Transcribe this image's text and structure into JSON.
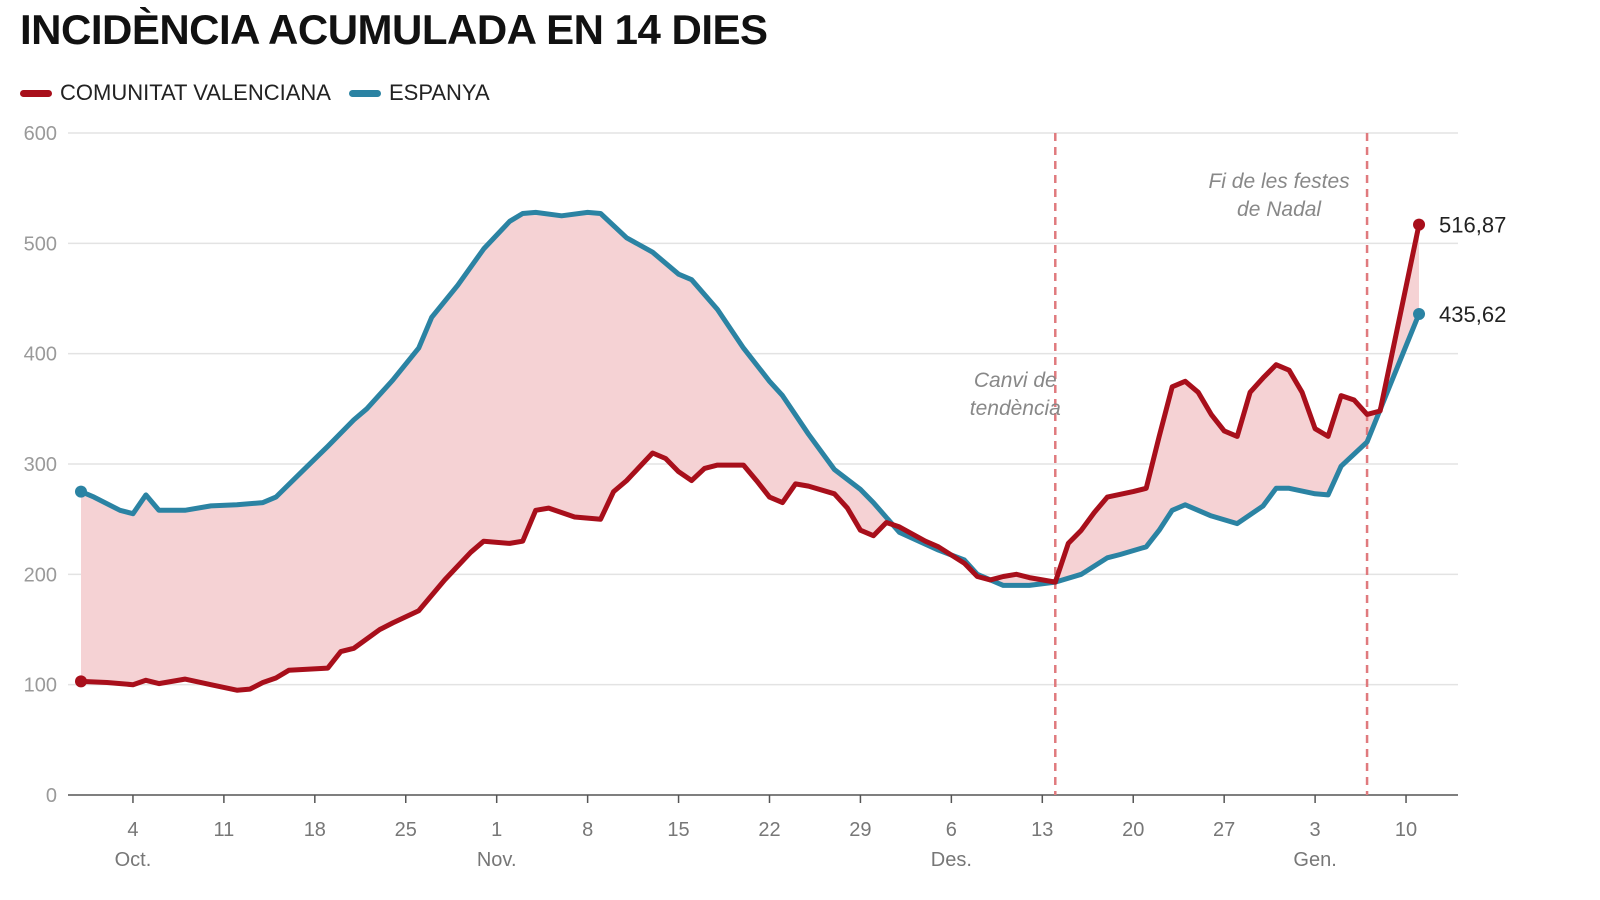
{
  "title": "INCIDÈNCIA ACUMULADA EN 14 DIES",
  "colors": {
    "cv": "#a80f1b",
    "es": "#2b83a3",
    "fill": "#f5d2d4",
    "grid": "#e3e3e3",
    "axis": "#999999",
    "marker": "#e07a7e"
  },
  "legend": [
    {
      "label": "COMUNITAT VALENCIANA",
      "color": "#a80f1b"
    },
    {
      "label": "ESPANYA",
      "color": "#2b83a3"
    }
  ],
  "chart_data": {
    "type": "line",
    "title": "INCIDÈNCIA ACUMULADA EN 14 DIES",
    "xlabel": "",
    "ylabel": "",
    "ylim": [
      0,
      600
    ],
    "yticks": [
      0,
      100,
      200,
      300,
      400,
      500,
      600
    ],
    "xlim": [
      "2020-09-29",
      "2021-01-14"
    ],
    "grid": true,
    "legend_position": "top-left",
    "xticks": [
      {
        "date": "2020-10-04",
        "label": "4",
        "month": "Oct."
      },
      {
        "date": "2020-10-11",
        "label": "11",
        "month": ""
      },
      {
        "date": "2020-10-18",
        "label": "18",
        "month": ""
      },
      {
        "date": "2020-10-25",
        "label": "25",
        "month": ""
      },
      {
        "date": "2020-11-01",
        "label": "1",
        "month": "Nov."
      },
      {
        "date": "2020-11-08",
        "label": "8",
        "month": ""
      },
      {
        "date": "2020-11-15",
        "label": "15",
        "month": ""
      },
      {
        "date": "2020-11-22",
        "label": "22",
        "month": ""
      },
      {
        "date": "2020-11-29",
        "label": "29",
        "month": ""
      },
      {
        "date": "2020-12-06",
        "label": "6",
        "month": "Des."
      },
      {
        "date": "2020-12-13",
        "label": "13",
        "month": ""
      },
      {
        "date": "2020-12-20",
        "label": "20",
        "month": ""
      },
      {
        "date": "2020-12-27",
        "label": "27",
        "month": ""
      },
      {
        "date": "2021-01-03",
        "label": "3",
        "month": "Gen."
      },
      {
        "date": "2021-01-10",
        "label": "10",
        "month": ""
      }
    ],
    "series": [
      {
        "name": "COMUNITAT VALENCIANA",
        "color": "#a80f1b",
        "end_label": "516,87",
        "points": [
          [
            "2020-09-30",
            103
          ],
          [
            "2020-10-02",
            102
          ],
          [
            "2020-10-04",
            100
          ],
          [
            "2020-10-05",
            104
          ],
          [
            "2020-10-06",
            101
          ],
          [
            "2020-10-08",
            105
          ],
          [
            "2020-10-10",
            100
          ],
          [
            "2020-10-12",
            95
          ],
          [
            "2020-10-13",
            96
          ],
          [
            "2020-10-14",
            102
          ],
          [
            "2020-10-15",
            106
          ],
          [
            "2020-10-16",
            113
          ],
          [
            "2020-10-19",
            115
          ],
          [
            "2020-10-20",
            130
          ],
          [
            "2020-10-21",
            133
          ],
          [
            "2020-10-23",
            150
          ],
          [
            "2020-10-24",
            156
          ],
          [
            "2020-10-26",
            167
          ],
          [
            "2020-10-28",
            195
          ],
          [
            "2020-10-30",
            220
          ],
          [
            "2020-10-31",
            230
          ],
          [
            "2020-11-02",
            228
          ],
          [
            "2020-11-03",
            230
          ],
          [
            "2020-11-04",
            258
          ],
          [
            "2020-11-05",
            260
          ],
          [
            "2020-11-07",
            252
          ],
          [
            "2020-11-09",
            250
          ],
          [
            "2020-11-10",
            275
          ],
          [
            "2020-11-11",
            285
          ],
          [
            "2020-11-13",
            310
          ],
          [
            "2020-11-14",
            305
          ],
          [
            "2020-11-15",
            293
          ],
          [
            "2020-11-16",
            285
          ],
          [
            "2020-11-17",
            296
          ],
          [
            "2020-11-18",
            299
          ],
          [
            "2020-11-20",
            299
          ],
          [
            "2020-11-21",
            285
          ],
          [
            "2020-11-22",
            270
          ],
          [
            "2020-11-23",
            265
          ],
          [
            "2020-11-24",
            282
          ],
          [
            "2020-11-25",
            280
          ],
          [
            "2020-11-27",
            273
          ],
          [
            "2020-11-28",
            260
          ],
          [
            "2020-11-29",
            240
          ],
          [
            "2020-11-30",
            235
          ],
          [
            "2020-12-01",
            247
          ],
          [
            "2020-12-02",
            243
          ],
          [
            "2020-12-04",
            230
          ],
          [
            "2020-12-05",
            225
          ],
          [
            "2020-12-07",
            210
          ],
          [
            "2020-12-08",
            198
          ],
          [
            "2020-12-09",
            195
          ],
          [
            "2020-12-10",
            198
          ],
          [
            "2020-12-11",
            200
          ],
          [
            "2020-12-12",
            197
          ],
          [
            "2020-12-14",
            193
          ],
          [
            "2020-12-15",
            228
          ],
          [
            "2020-12-16",
            240
          ],
          [
            "2020-12-17",
            256
          ],
          [
            "2020-12-18",
            270
          ],
          [
            "2020-12-20",
            275
          ],
          [
            "2020-12-21",
            278
          ],
          [
            "2020-12-22",
            325
          ],
          [
            "2020-12-23",
            370
          ],
          [
            "2020-12-24",
            375
          ],
          [
            "2020-12-25",
            365
          ],
          [
            "2020-12-26",
            345
          ],
          [
            "2020-12-27",
            330
          ],
          [
            "2020-12-28",
            325
          ],
          [
            "2020-12-29",
            365
          ],
          [
            "2020-12-30",
            378
          ],
          [
            "2020-12-31",
            390
          ],
          [
            "2021-01-01",
            385
          ],
          [
            "2021-01-02",
            365
          ],
          [
            "2021-01-03",
            332
          ],
          [
            "2021-01-04",
            325
          ],
          [
            "2021-01-05",
            362
          ],
          [
            "2021-01-06",
            358
          ],
          [
            "2021-01-07",
            345
          ],
          [
            "2021-01-08",
            348
          ],
          [
            "2021-01-11",
            517
          ]
        ]
      },
      {
        "name": "ESPANYA",
        "color": "#2b83a3",
        "end_label": "435,62",
        "points": [
          [
            "2020-09-30",
            275
          ],
          [
            "2020-10-01",
            270
          ],
          [
            "2020-10-03",
            258
          ],
          [
            "2020-10-04",
            255
          ],
          [
            "2020-10-05",
            272
          ],
          [
            "2020-10-06",
            258
          ],
          [
            "2020-10-08",
            258
          ],
          [
            "2020-10-10",
            262
          ],
          [
            "2020-10-12",
            263
          ],
          [
            "2020-10-14",
            265
          ],
          [
            "2020-10-15",
            270
          ],
          [
            "2020-10-17",
            293
          ],
          [
            "2020-10-19",
            316
          ],
          [
            "2020-10-21",
            340
          ],
          [
            "2020-10-22",
            350
          ],
          [
            "2020-10-24",
            376
          ],
          [
            "2020-10-26",
            405
          ],
          [
            "2020-10-27",
            433
          ],
          [
            "2020-10-29",
            462
          ],
          [
            "2020-10-31",
            495
          ],
          [
            "2020-11-02",
            520
          ],
          [
            "2020-11-03",
            527
          ],
          [
            "2020-11-04",
            528
          ],
          [
            "2020-11-06",
            525
          ],
          [
            "2020-11-08",
            528
          ],
          [
            "2020-11-09",
            527
          ],
          [
            "2020-11-11",
            505
          ],
          [
            "2020-11-13",
            492
          ],
          [
            "2020-11-15",
            472
          ],
          [
            "2020-11-16",
            467
          ],
          [
            "2020-11-18",
            440
          ],
          [
            "2020-11-20",
            405
          ],
          [
            "2020-11-22",
            375
          ],
          [
            "2020-11-23",
            362
          ],
          [
            "2020-11-25",
            327
          ],
          [
            "2020-11-27",
            295
          ],
          [
            "2020-11-29",
            277
          ],
          [
            "2020-11-30",
            265
          ],
          [
            "2020-12-02",
            238
          ],
          [
            "2020-12-05",
            222
          ],
          [
            "2020-12-07",
            213
          ],
          [
            "2020-12-08",
            200
          ],
          [
            "2020-12-10",
            190
          ],
          [
            "2020-12-12",
            190
          ],
          [
            "2020-12-14",
            193
          ],
          [
            "2020-12-16",
            200
          ],
          [
            "2020-12-18",
            215
          ],
          [
            "2020-12-19",
            218
          ],
          [
            "2020-12-21",
            225
          ],
          [
            "2020-12-22",
            240
          ],
          [
            "2020-12-23",
            258
          ],
          [
            "2020-12-24",
            263
          ],
          [
            "2020-12-26",
            253
          ],
          [
            "2020-12-28",
            246
          ],
          [
            "2020-12-30",
            262
          ],
          [
            "2020-12-31",
            278
          ],
          [
            "2021-01-01",
            278
          ],
          [
            "2021-01-03",
            273
          ],
          [
            "2021-01-04",
            272
          ],
          [
            "2021-01-05",
            298
          ],
          [
            "2021-01-07",
            320
          ],
          [
            "2021-01-09",
            378
          ],
          [
            "2021-01-11",
            436
          ]
        ]
      }
    ],
    "annotations": [
      {
        "date": "2020-12-14",
        "text": [
          "Canvi de",
          "tendència"
        ],
        "value": 370
      },
      {
        "date": "2021-01-07",
        "text": [
          "Fi de les festes",
          "de Nadal"
        ],
        "value": 550
      }
    ]
  }
}
